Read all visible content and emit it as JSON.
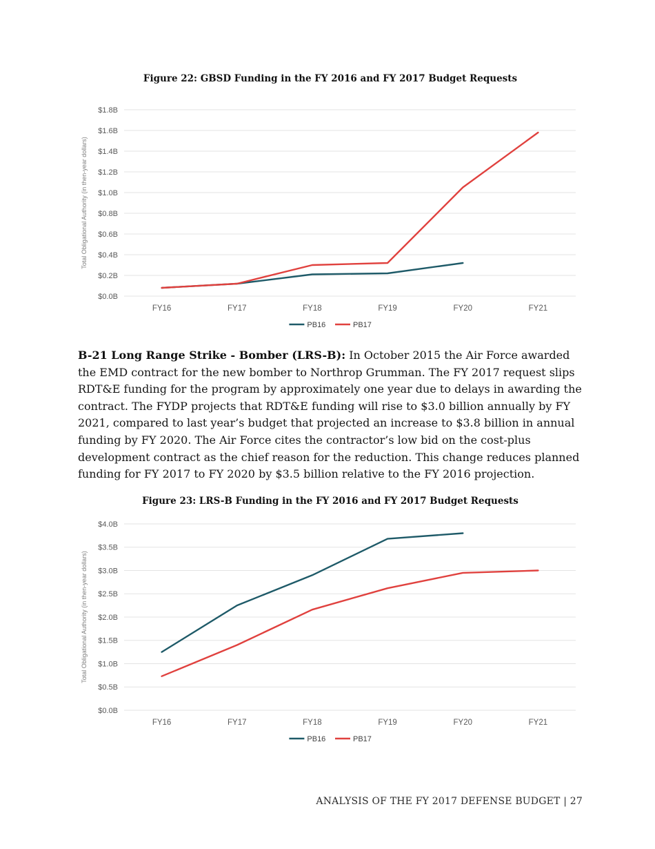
{
  "paragraph": {
    "lead": "B-21 Long Range Strike - Bomber (LRS-B):",
    "body": " In October 2015 the Air Force awarded the EMD contract for the new bomber to Northrop Grumman. The FY 2017 request slips RDT&E funding for the program by approximately one year due to delays in awarding the contract. The FYDP projects that RDT&E funding will rise to $3.0 billion annually by FY 2021, compared to last year’s budget that projected an increase to $3.8 billion in annual funding by FY 2020. The Air Force cites the contractor’s low bid on the cost-plus development contract as the chief reason for the reduction. This change reduces planned funding for FY 2017 to FY 2020 by $3.5 billion relative to the FY 2016 projection."
  },
  "footer": {
    "text": "ANALYSIS OF THE FY 2017 DEFENSE BUDGET | 27"
  },
  "colors": {
    "pb16_line": "#1e5a68",
    "pb17_line": "#e0413e",
    "gridline": "#e3e3e3",
    "tick_label": "#595959",
    "axis_title": "#7f7f7f",
    "legend_label": "#404040"
  },
  "chart_data": [
    {
      "id": "figure22",
      "type": "line",
      "title": "Figure 22: GBSD Funding in the FY 2016 and FY 2017 Budget Requests",
      "categories": [
        "FY16",
        "FY17",
        "FY18",
        "FY19",
        "FY20",
        "FY21"
      ],
      "series": [
        {
          "name": "PB16",
          "color": "#1e5a68",
          "values": [
            0.08,
            0.12,
            0.21,
            0.22,
            0.32,
            null
          ]
        },
        {
          "name": "PB17",
          "color": "#e0413e",
          "values": [
            0.08,
            0.12,
            0.3,
            0.32,
            1.05,
            1.58
          ]
        }
      ],
      "xlabel": "",
      "ylabel": "Total Obligational Authority (in then-year dollars)",
      "ylim": [
        0,
        1.8
      ],
      "ytick_step": 0.2,
      "ytick_format": "$#.#B",
      "grid": true,
      "legend_position": "bottom"
    },
    {
      "id": "figure23",
      "type": "line",
      "title": "Figure 23: LRS-B Funding in the FY 2016 and FY 2017 Budget Requests",
      "categories": [
        "FY16",
        "FY17",
        "FY18",
        "FY19",
        "FY20",
        "FY21"
      ],
      "series": [
        {
          "name": "PB16",
          "color": "#1e5a68",
          "values": [
            1.25,
            2.25,
            2.9,
            3.68,
            3.8,
            null
          ]
        },
        {
          "name": "PB17",
          "color": "#e0413e",
          "values": [
            0.73,
            1.4,
            2.16,
            2.62,
            2.95,
            3.0
          ]
        }
      ],
      "xlabel": "",
      "ylabel": "Total Obligational Authority (in then-year dollars)",
      "ylim": [
        0,
        4.0
      ],
      "ytick_step": 0.5,
      "ytick_format": "$#.#B",
      "grid": true,
      "legend_position": "bottom"
    }
  ]
}
